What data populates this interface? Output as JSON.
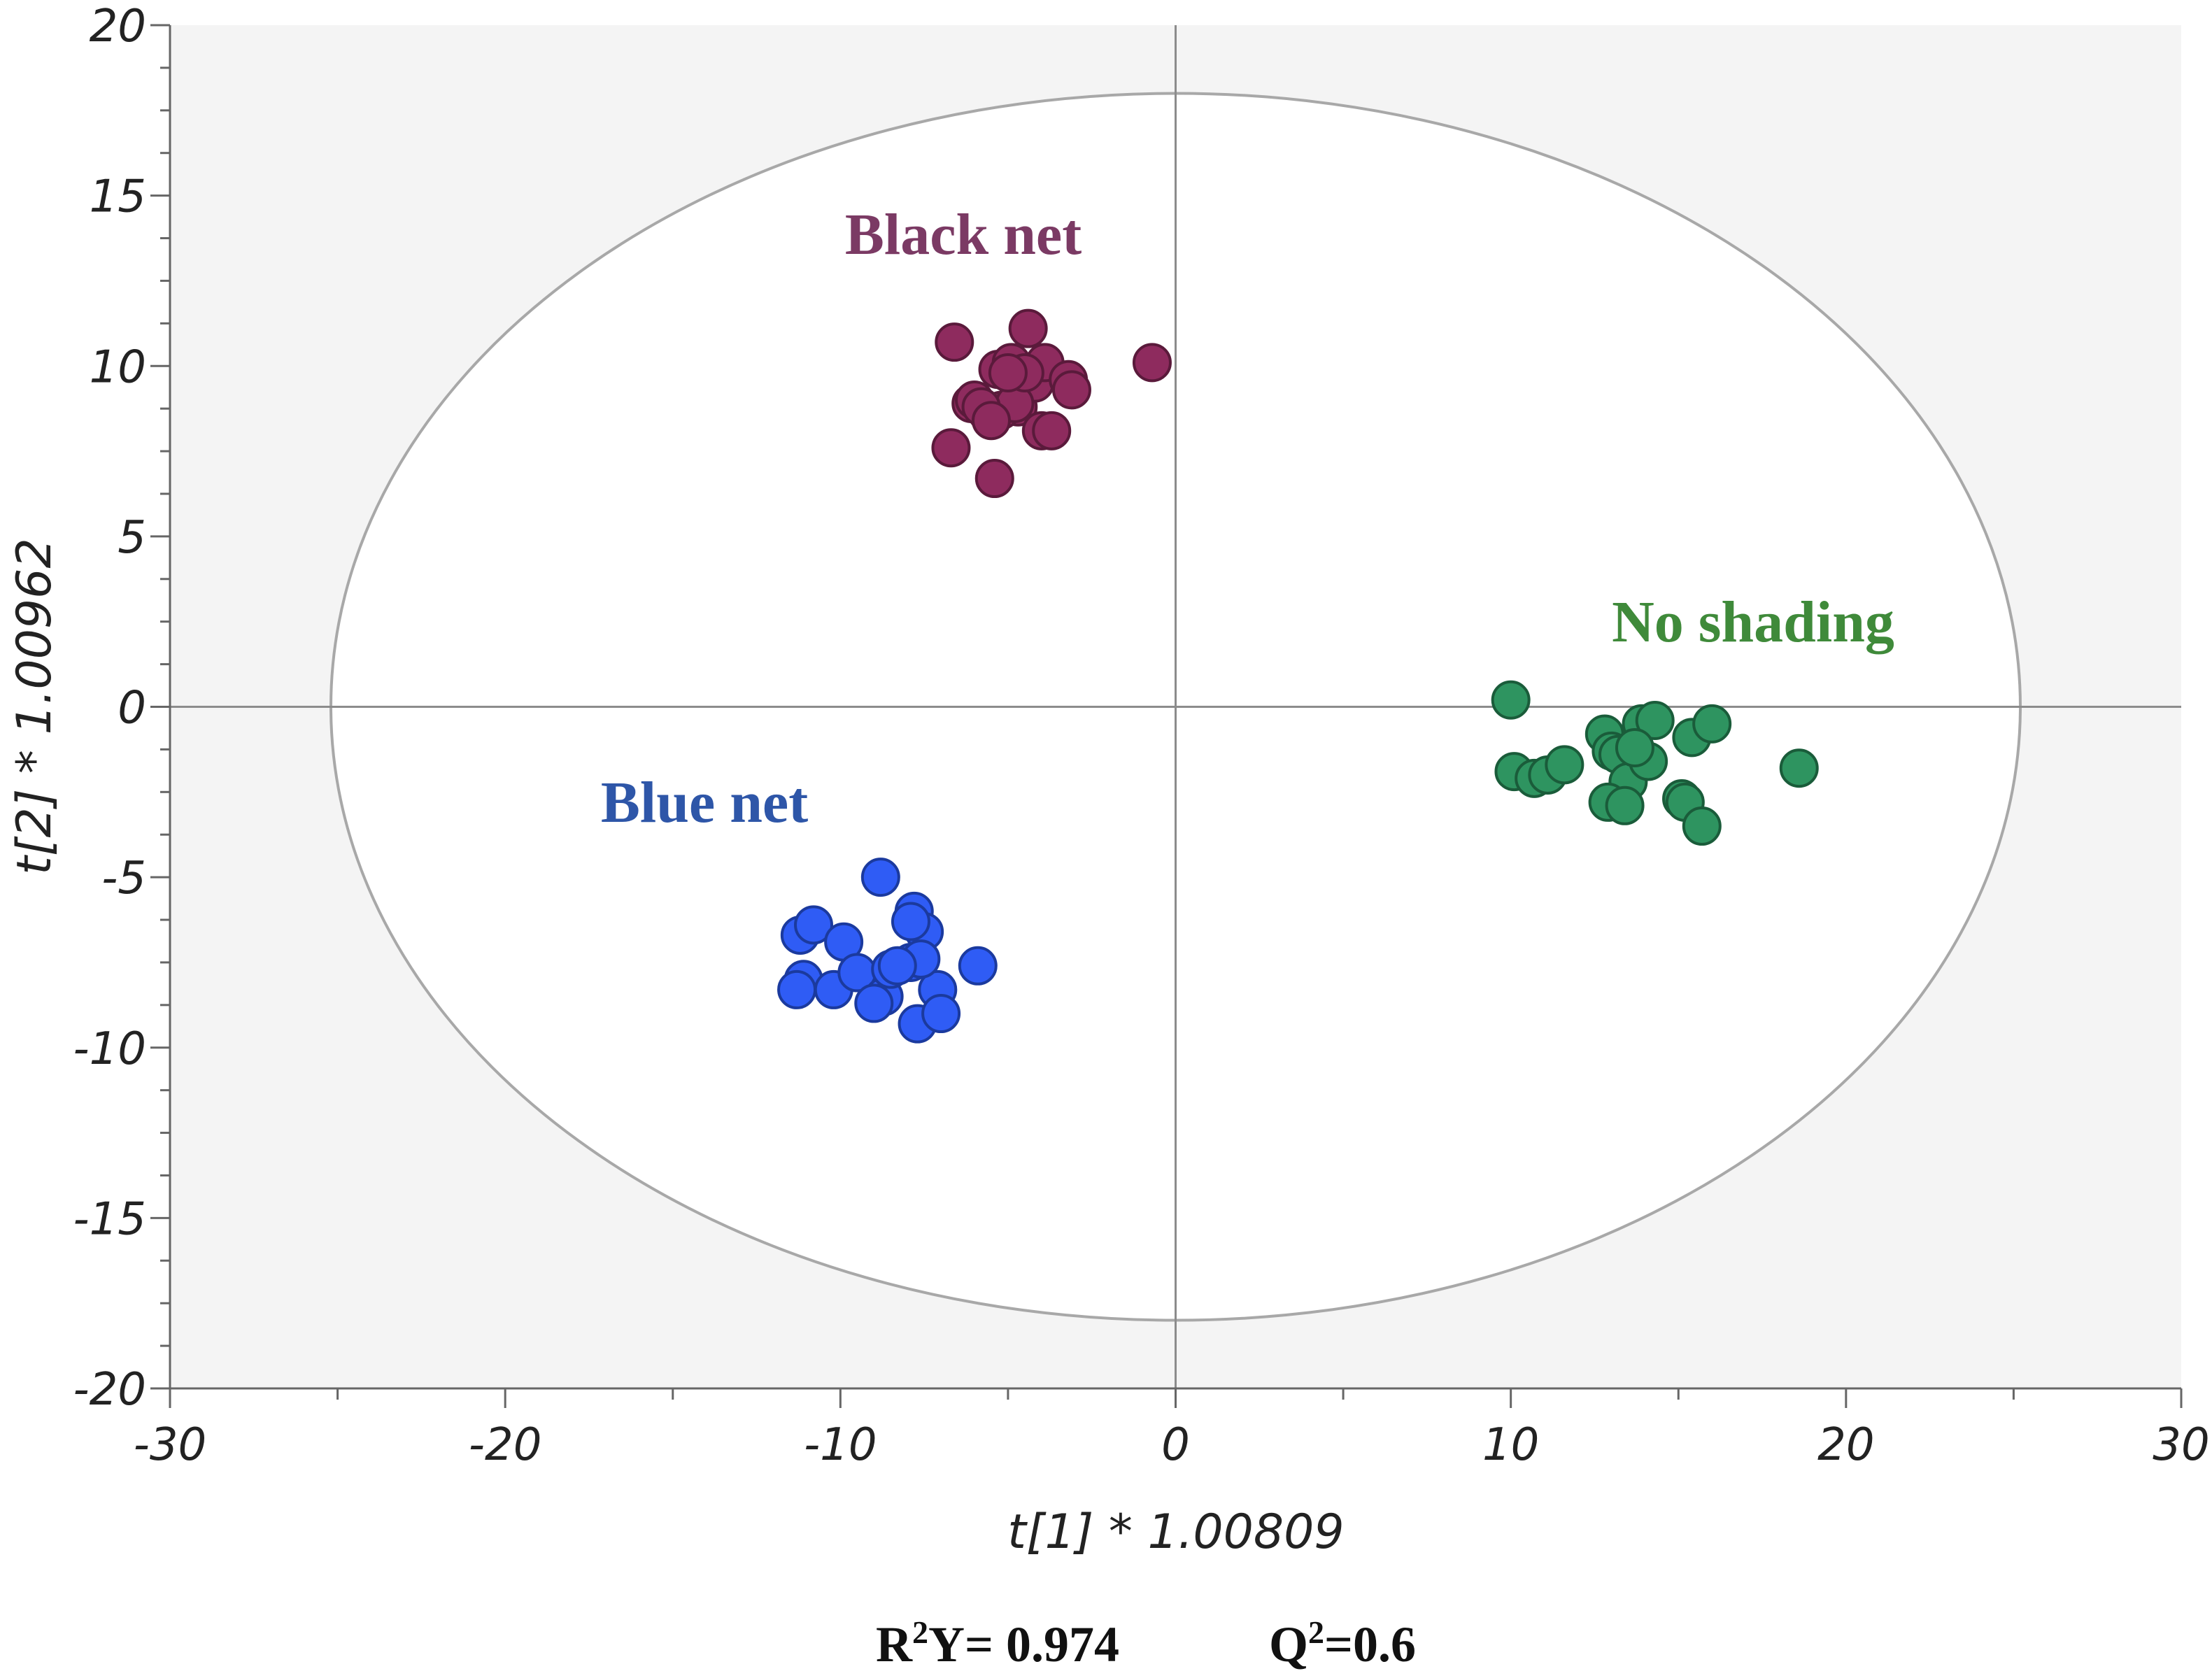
{
  "chart_data": {
    "type": "scatter",
    "xlabel": "t[1] * 1.00809",
    "ylabel": "t[2] * 1.00962",
    "xlim": [
      -30,
      30
    ],
    "ylim": [
      -20,
      20
    ],
    "xticks": [
      -30,
      -20,
      -10,
      0,
      10,
      20,
      30
    ],
    "yticks": [
      -20,
      -15,
      -10,
      -5,
      0,
      5,
      10,
      15,
      20
    ],
    "grid": false,
    "background": "#f4f4f4",
    "ellipse": {
      "cx": 0,
      "cy": 0,
      "rx": 25.2,
      "ry": 18.0
    },
    "series": [
      {
        "name": "Black net",
        "color": "#8e2b5e",
        "stroke": "#5a1a3b",
        "x": [
          -6.6,
          -4.4,
          -6.1,
          -5.3,
          -4.9,
          -4.7,
          -4.2,
          -3.9,
          -3.2,
          -3.1,
          -6.0,
          -5.6,
          -5.2,
          -4.8,
          -4.5,
          -5.8,
          -5.5,
          -4.0,
          -3.7,
          -6.7,
          -5.4,
          -0.7,
          -5.0
        ],
        "y": [
          10.7,
          11.1,
          8.9,
          9.9,
          10.1,
          8.8,
          9.5,
          10.1,
          9.6,
          9.3,
          9.0,
          8.6,
          8.7,
          8.9,
          9.8,
          8.8,
          8.4,
          8.1,
          8.1,
          7.6,
          6.7,
          10.1,
          9.8
        ]
      },
      {
        "name": "Blue net",
        "color": "#2f5cf5",
        "stroke": "#1b3a9e",
        "x": [
          -8.8,
          -7.8,
          -7.5,
          -11.2,
          -10.8,
          -9.9,
          -7.9,
          -11.1,
          -11.3,
          -10.2,
          -9.5,
          -8.7,
          -9.0,
          -8.5,
          -7.7,
          -7.1,
          -7.0,
          -7.6,
          -5.9,
          -8.3,
          -7.9
        ],
        "y": [
          -5.0,
          -6.0,
          -6.6,
          -6.7,
          -6.4,
          -6.9,
          -7.5,
          -8.0,
          -8.3,
          -8.3,
          -7.8,
          -8.5,
          -8.7,
          -7.7,
          -9.3,
          -8.3,
          -9.0,
          -7.4,
          -7.6,
          -7.6,
          -6.3
        ]
      },
      {
        "name": "No shading",
        "color": "#2e9460",
        "stroke": "#1a5c3a",
        "x": [
          10.0,
          10.1,
          10.7,
          11.1,
          11.6,
          12.8,
          13.0,
          13.2,
          13.5,
          13.9,
          14.3,
          14.1,
          15.4,
          16.0,
          13.7,
          12.9,
          13.4,
          15.1,
          15.2,
          15.7,
          18.6
        ],
        "y": [
          0.2,
          -1.9,
          -2.1,
          -2.0,
          -1.7,
          -0.8,
          -1.3,
          -1.4,
          -2.2,
          -0.5,
          -0.4,
          -1.6,
          -0.9,
          -0.5,
          -1.2,
          -2.8,
          -2.9,
          -2.7,
          -2.8,
          -3.5,
          -1.8
        ]
      }
    ],
    "annotations": {
      "black_net": "Black net",
      "blue_net": "Blue net",
      "no_shading": "No shading"
    },
    "label_colors": {
      "black_net": "#7b3a64",
      "blue_net": "#2e56a8",
      "no_shading": "#3f8a3a"
    },
    "stats": {
      "r2y_prefix": "R",
      "r2y_sup": "2",
      "r2y_suffix": "Y= 0.974",
      "q2_prefix": "Q",
      "q2_sup": "2",
      "q2_suffix": "=0.6"
    }
  }
}
